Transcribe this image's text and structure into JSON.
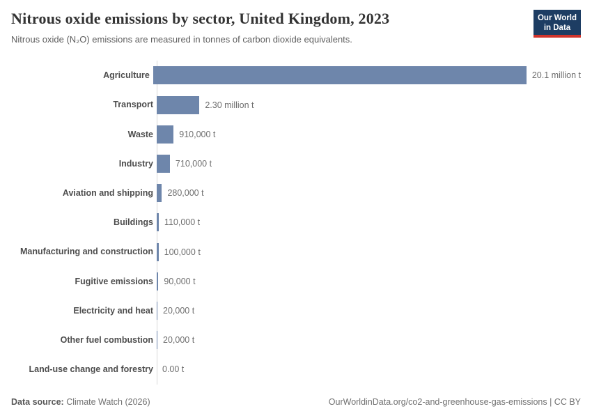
{
  "header": {
    "logo": {
      "line1": "Our World",
      "line2": "in Data"
    }
  },
  "footer": {
    "source_label": "Data source:",
    "source_value": " Climate Watch (2026)",
    "url_text": "OurWorldinData.org/co2-and-greenhouse-gas-emissions | CC BY"
  },
  "colors": {
    "bar": "#6e86ab",
    "logo_navy": "#1d3d63",
    "logo_red": "#d0342c",
    "axis": "#d7d7d7"
  },
  "chart_data": {
    "type": "bar",
    "orientation": "horizontal",
    "title": "Nitrous oxide emissions by sector, United Kingdom, 2023",
    "subtitle": "Nitrous oxide (N₂O) emissions are measured in tonnes of carbon dioxide equivalents.",
    "categories": [
      "Agriculture",
      "Transport",
      "Waste",
      "Industry",
      "Aviation and shipping",
      "Buildings",
      "Manufacturing and construction",
      "Fugitive emissions",
      "Electricity and heat",
      "Other fuel combustion",
      "Land-use change and forestry"
    ],
    "values": [
      20100000,
      2300000,
      910000,
      710000,
      280000,
      110000,
      100000,
      90000,
      20000,
      20000,
      0
    ],
    "value_labels": [
      "20.1 million t",
      "2.30 million t",
      "910,000 t",
      "710,000 t",
      "280,000 t",
      "110,000 t",
      "100,000 t",
      "90,000 t",
      "20,000 t",
      "20,000 t",
      "0.00 t"
    ],
    "xlim": [
      0,
      20100000
    ],
    "grid": false,
    "legend": false
  }
}
